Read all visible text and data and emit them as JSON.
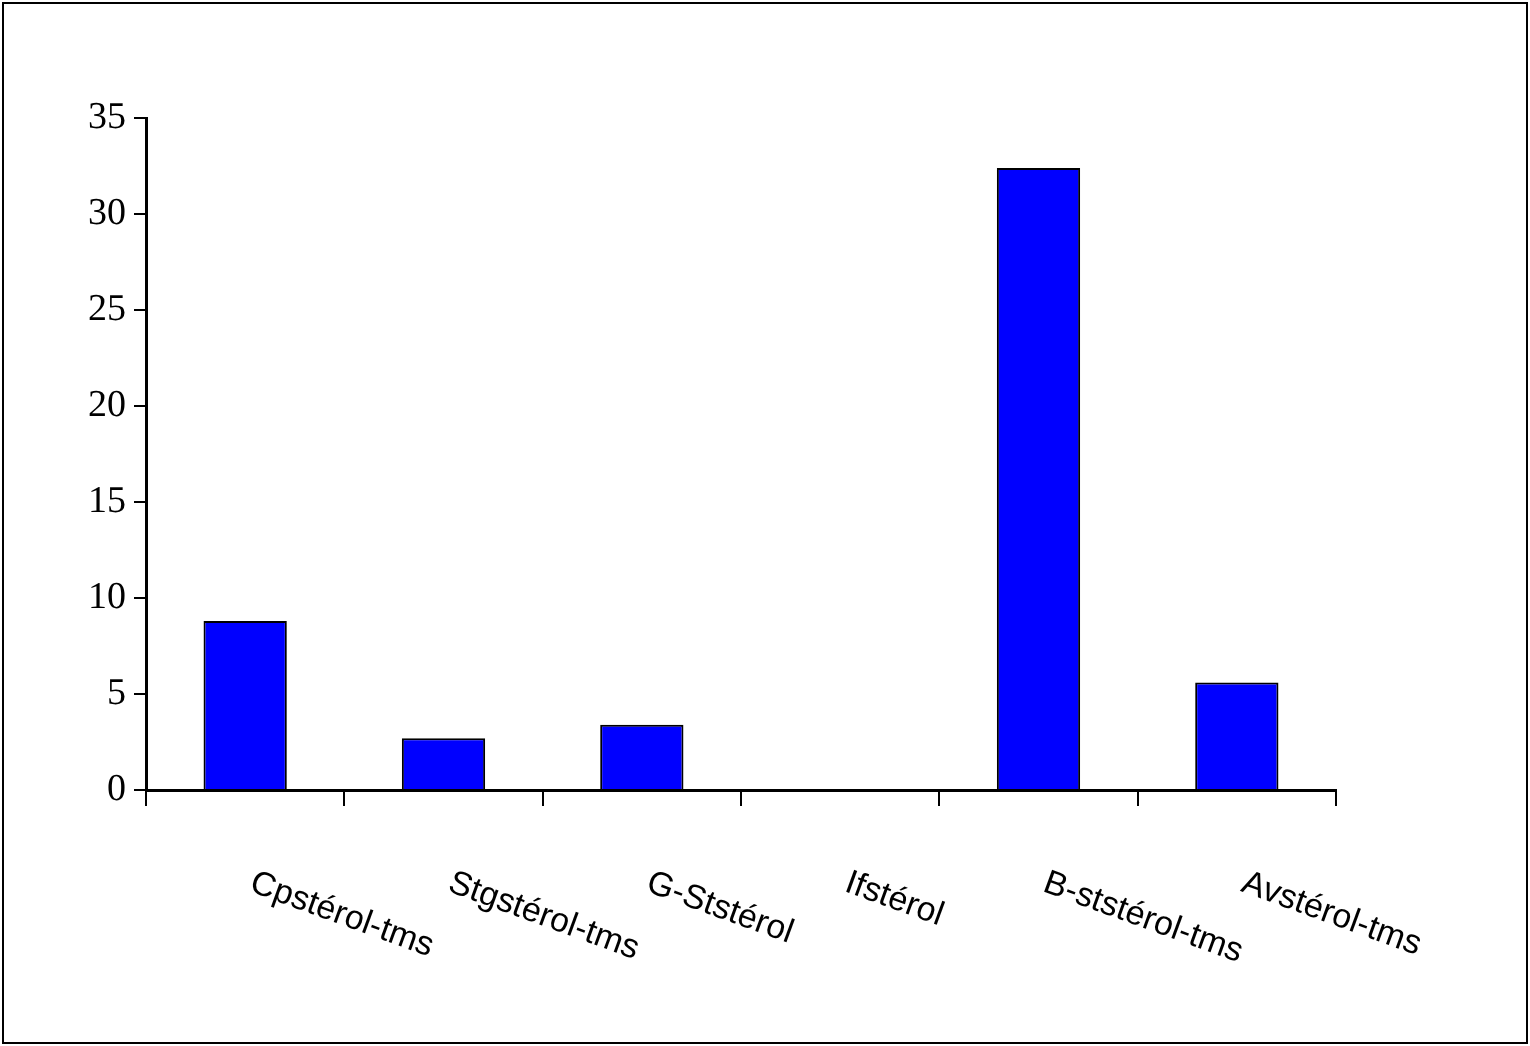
{
  "chart_data": {
    "type": "bar",
    "categories": [
      "Cpstérol-tms",
      "Stgstérol-tms",
      "G-Ststérol",
      "Ifstérol",
      "B-ststérol-tms",
      "Avstérol-tms"
    ],
    "values": [
      8.8,
      2.7,
      3.4,
      0,
      32.4,
      5.6
    ],
    "color": "#0000ff",
    "ylim": [
      0,
      35
    ],
    "yticks": [
      0,
      5,
      10,
      15,
      20,
      25,
      30,
      35
    ],
    "grid": false,
    "legend": false
  }
}
